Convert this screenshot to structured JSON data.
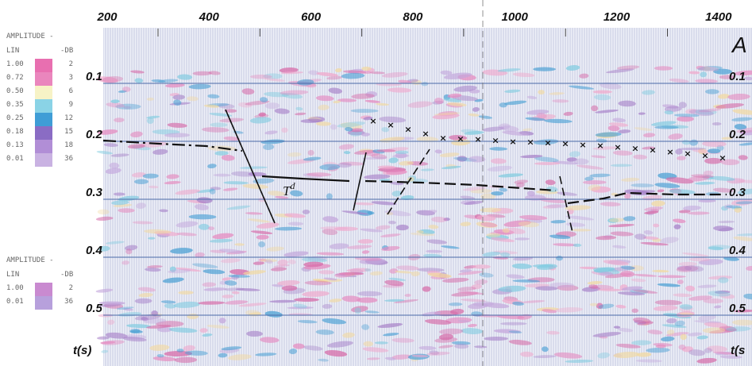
{
  "figure_label": "A",
  "trace_axis": {
    "ticks": [
      "200",
      "400",
      "600",
      "800",
      "1000",
      "1200",
      "1400"
    ]
  },
  "time_axis": {
    "ticks": [
      "0.1",
      "0.2",
      "0.3",
      "0.4",
      "0.5"
    ],
    "label": "t(s)",
    "right_label": "t(s"
  },
  "annotation": {
    "text": "T",
    "superscript": "d"
  },
  "legends": [
    {
      "title": "AMPLITUDE -",
      "header": [
        "LIN",
        "-DB"
      ],
      "rows": [
        [
          "1.00",
          "2"
        ],
        [
          "0.72",
          "3"
        ],
        [
          "0.50",
          "6"
        ],
        [
          "0.35",
          "9"
        ],
        [
          "0.25",
          "12"
        ],
        [
          "0.18",
          "15"
        ],
        [
          "0.13",
          "18"
        ],
        [
          "0.01",
          "36"
        ]
      ]
    },
    {
      "title": "AMPLITUDE -",
      "header": [
        "LIN",
        "-DB"
      ],
      "rows": [
        [
          "1.00",
          "2"
        ],
        [
          "0.01",
          "36"
        ]
      ]
    }
  ]
}
